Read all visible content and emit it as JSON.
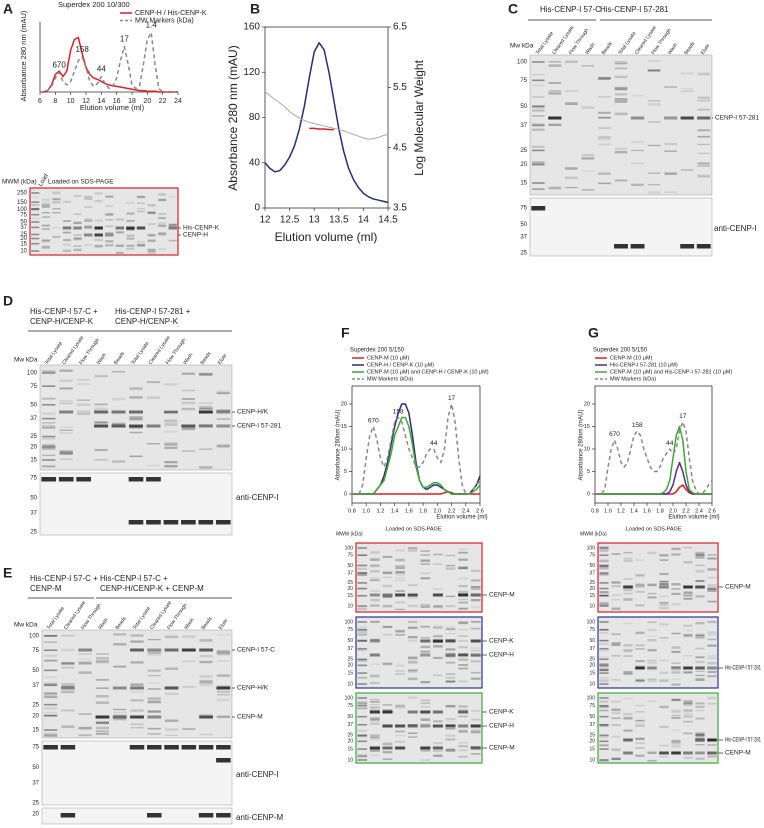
{
  "panel_letters": [
    "A",
    "B",
    "C",
    "D",
    "E",
    "F",
    "G"
  ],
  "chart_data": [
    {
      "type": "line",
      "title": "Superdex 200 10/300",
      "x_label": "Elution volume (ml)",
      "y_label": "Absorbance 280 nm (mAU)",
      "x": [
        6,
        6.5,
        7,
        7.5,
        8,
        8.5,
        9,
        9.5,
        10,
        10.5,
        11,
        11.5,
        12,
        12.5,
        13,
        13.5,
        14,
        14.5,
        15,
        15.5,
        16,
        16.5,
        17,
        17.5,
        18,
        18.5,
        19,
        19.5,
        20,
        20.5,
        21,
        21.5,
        22,
        22.5,
        23,
        23.5,
        24
      ],
      "xlim": [
        6,
        24
      ],
      "xticks": [
        6,
        8,
        10,
        12,
        14,
        16,
        18,
        20,
        22,
        24
      ],
      "ylim": [
        0,
        100
      ],
      "series": [
        {
          "name": "CENP-H / His-CENP-K",
          "color": "#d6202a",
          "style": "solid",
          "values": [
            0,
            0,
            2,
            10,
            25,
            30,
            22,
            30,
            60,
            75,
            78,
            55,
            35,
            25,
            20,
            18,
            15,
            12,
            10,
            9,
            8,
            7,
            6,
            5,
            4,
            3,
            2,
            2,
            1,
            1,
            1,
            0,
            0,
            0,
            0,
            0,
            0
          ]
        },
        {
          "name": "MW Markers (kDa)",
          "color": "#888888",
          "style": "dashed",
          "values": [
            0,
            0,
            2,
            8,
            20,
            28,
            15,
            10,
            15,
            30,
            45,
            50,
            35,
            15,
            8,
            12,
            22,
            12,
            5,
            8,
            20,
            45,
            65,
            40,
            10,
            5,
            10,
            40,
            75,
            85,
            40,
            5,
            0,
            0,
            0,
            0,
            0
          ]
        }
      ],
      "annotations": [
        {
          "label": "670",
          "x": 8.5
        },
        {
          "label": "158",
          "x": 11.5
        },
        {
          "label": "44",
          "x": 14
        },
        {
          "label": "17",
          "x": 17
        },
        {
          "label": "1.4",
          "x": 20.5
        }
      ]
    },
    {
      "type": "line",
      "x_label": "Elution volume (ml)",
      "y_label": "Absorbance 280 nm (mAU)",
      "y2_label": "Log Molecular Weight",
      "x": [
        12,
        12.1,
        12.2,
        12.3,
        12.4,
        12.5,
        12.6,
        12.7,
        12.8,
        12.9,
        13,
        13.1,
        13.2,
        13.3,
        13.4,
        13.5,
        13.6,
        13.7,
        13.8,
        13.9,
        14,
        14.1,
        14.2,
        14.3,
        14.4,
        14.5
      ],
      "xlim": [
        12,
        14.5
      ],
      "xticks": [
        12,
        12.5,
        13,
        13.5,
        14,
        14.5
      ],
      "ylim": [
        0,
        160
      ],
      "yticks": [
        0,
        40,
        80,
        120,
        160
      ],
      "y2lim": [
        3.5,
        6.5
      ],
      "y2ticks": [
        3.5,
        4.5,
        5.5,
        6.5
      ],
      "series": [
        {
          "color": "#2b2a7a",
          "style": "solid",
          "values": [
            40,
            35,
            32,
            33,
            38,
            45,
            55,
            70,
            90,
            115,
            138,
            146,
            140,
            120,
            95,
            70,
            50,
            35,
            25,
            18,
            13,
            10,
            8,
            7,
            6,
            5
          ]
        },
        {
          "color": "#aaaaaa",
          "style": "solid",
          "axis": "y2",
          "values": [
            5.43,
            5.36,
            5.3,
            5.24,
            5.18,
            5.1,
            5.04,
            4.99,
            4.95,
            4.92,
            4.9,
            4.88,
            4.86,
            4.84,
            4.82,
            4.8,
            4.78,
            4.75,
            4.72,
            4.69,
            4.66,
            4.64,
            4.65,
            4.67,
            4.7,
            4.72
          ]
        },
        {
          "color": "#d6202a",
          "style": "solid",
          "axis": "y2",
          "values": [
            null,
            null,
            null,
            null,
            null,
            null,
            null,
            null,
            null,
            4.82,
            4.82,
            4.81,
            4.81,
            4.8,
            4.8,
            null,
            null,
            null,
            null,
            null,
            null,
            null,
            null,
            null,
            null,
            null
          ]
        }
      ]
    },
    {
      "type": "line",
      "title": "Superdex 200 5/150",
      "x_label": "Elution volume (ml)",
      "y_label": "Absorbance 280nm (mAU)",
      "x": [
        0.8,
        0.85,
        0.9,
        0.95,
        1,
        1.05,
        1.1,
        1.15,
        1.2,
        1.25,
        1.3,
        1.35,
        1.4,
        1.45,
        1.5,
        1.55,
        1.6,
        1.65,
        1.7,
        1.75,
        1.8,
        1.85,
        1.9,
        1.95,
        2,
        2.05,
        2.1,
        2.15,
        2.2,
        2.25,
        2.3,
        2.35,
        2.4,
        2.45,
        2.5,
        2.55,
        2.6
      ],
      "xlim": [
        0.8,
        2.6
      ],
      "xticks": [
        0.8,
        {
          "value": 1,
          "label": "1.0"
        },
        1.2,
        1.4,
        1.6,
        1.8,
        {
          "value": 2,
          "label": "2.0"
        },
        2.2,
        2.4,
        2.6
      ],
      "ylim": [
        -2,
        24
      ],
      "yticks": [
        0,
        5,
        10,
        15,
        20
      ],
      "series": [
        {
          "name": "CENP-M (10 μM)",
          "color": "#d6202a",
          "style": "solid",
          "values": [
            0,
            0,
            0,
            0,
            0,
            0,
            0,
            0,
            0,
            0,
            0,
            0,
            0,
            0,
            0,
            0,
            0,
            0,
            0,
            0,
            0,
            0,
            0,
            0,
            0,
            0,
            0.3,
            0.5,
            0.3,
            0,
            0,
            0,
            0,
            0,
            0,
            0,
            0
          ]
        },
        {
          "name": "CENP-H / CENP-K (10 μM)",
          "color": "#2b2a7a",
          "style": "solid",
          "values": [
            0,
            0,
            0,
            0,
            0,
            0,
            0,
            1,
            2,
            4,
            7,
            11,
            15,
            18,
            20,
            20,
            18,
            13,
            7,
            3,
            1.5,
            1,
            1.5,
            2,
            2,
            1.5,
            1,
            0.5,
            0,
            0,
            0,
            0,
            0,
            0,
            1,
            2,
            4
          ]
        },
        {
          "name": "CENP-M (10 μM) and CENP-H / CENP-K (10 μM)",
          "color": "#3aaa35",
          "style": "solid",
          "values": [
            0,
            0,
            0,
            0,
            0,
            0,
            0,
            1,
            2,
            3,
            6,
            9,
            13,
            15,
            17,
            17,
            15,
            11,
            6,
            3,
            1.5,
            1.5,
            2,
            2.5,
            2.5,
            2,
            1,
            0.5,
            0,
            0,
            0,
            0,
            0,
            0,
            0.5,
            1,
            2
          ]
        },
        {
          "name": "MW Markers (kDa)",
          "color": "#888888",
          "style": "dashed",
          "values": [
            0,
            0,
            0,
            2,
            8,
            13,
            15,
            12,
            8,
            6,
            8,
            12,
            16,
            17,
            16,
            13,
            10,
            8,
            6,
            6,
            7,
            9,
            10,
            10,
            8,
            7,
            10,
            17,
            20,
            16,
            8,
            2,
            0,
            0,
            1,
            2,
            3
          ]
        }
      ],
      "annotations": [
        {
          "label": "670",
          "x": 1.1
        },
        {
          "label": "158",
          "x": 1.45
        },
        {
          "label": "44",
          "x": 1.95
        },
        {
          "label": "17",
          "x": 2.2
        }
      ]
    },
    {
      "type": "line",
      "title": "Superdex 200 5/150",
      "x_label": "Elution volume (ml)",
      "y_label": "Absorbance 280nm (mAU)",
      "x": [
        0.8,
        0.85,
        0.9,
        0.95,
        1,
        1.05,
        1.1,
        1.15,
        1.2,
        1.25,
        1.3,
        1.35,
        1.4,
        1.45,
        1.5,
        1.55,
        1.6,
        1.65,
        1.7,
        1.75,
        1.8,
        1.85,
        1.9,
        1.95,
        2,
        2.05,
        2.1,
        2.15,
        2.2,
        2.25,
        2.3,
        2.35,
        2.4,
        2.45,
        2.5,
        2.55,
        2.6
      ],
      "xlim": [
        0.8,
        2.6
      ],
      "xticks": [
        0.8,
        {
          "value": 1,
          "label": "1.0"
        },
        1.2,
        1.4,
        1.6,
        1.8,
        {
          "value": 2,
          "label": "2.0"
        },
        2.2,
        2.4,
        2.6
      ],
      "ylim": [
        -2,
        24
      ],
      "yticks": [
        0,
        5,
        10,
        15,
        20
      ],
      "series": [
        {
          "name": "CENP-M (10 μM)",
          "color": "#d6202a",
          "style": "solid",
          "values": [
            0,
            0,
            0,
            0,
            0,
            0,
            0,
            0,
            0,
            0,
            0,
            0,
            0,
            0,
            0,
            0,
            0,
            0,
            0,
            0,
            0,
            0,
            0,
            0,
            0,
            0.5,
            1.5,
            2,
            1,
            0.3,
            0,
            0,
            0,
            0,
            0,
            0,
            0
          ]
        },
        {
          "name": "His-CENP-I 57-281 (10 μM)",
          "color": "#5b2a86",
          "style": "solid",
          "values": [
            0,
            0,
            0,
            0,
            0,
            0,
            0,
            0,
            0,
            0,
            0,
            0,
            0,
            0,
            0,
            0,
            0,
            0,
            0,
            0,
            0,
            0,
            0,
            0.5,
            2,
            5,
            7,
            5,
            2,
            0.5,
            0,
            0,
            0,
            0,
            0,
            0,
            0
          ]
        },
        {
          "name": "CENP-M (10 μM) and His-CENP-I 57-281 (10 μM)",
          "color": "#3aaa35",
          "style": "solid",
          "values": [
            0,
            0,
            0,
            0,
            0,
            0,
            0,
            0,
            0,
            0,
            0,
            0,
            0,
            0,
            0,
            0,
            0,
            0,
            0,
            0,
            0,
            0.3,
            1,
            3,
            8,
            13,
            15,
            12,
            5,
            1,
            0.3,
            0,
            0,
            0,
            0,
            0,
            0
          ]
        },
        {
          "name": "MW Markers (kDa)",
          "color": "#888888",
          "style": "dashed",
          "values": [
            0,
            0,
            0,
            1,
            6,
            10,
            12,
            10,
            7,
            6,
            7,
            10,
            13,
            14,
            13,
            10,
            8,
            6,
            5,
            5,
            6,
            8,
            9,
            10,
            9,
            10,
            14,
            16,
            14,
            8,
            3,
            1,
            0,
            0,
            1,
            2,
            3
          ]
        }
      ],
      "annotations": [
        {
          "label": "670",
          "x": 1.1
        },
        {
          "label": "158",
          "x": 1.45
        },
        {
          "label": "44",
          "x": 1.95
        },
        {
          "label": "17",
          "x": 2.15
        }
      ]
    }
  ],
  "lane_headers": [
    {
      "groups": [
        [
          "His-CENP-I 57-C"
        ],
        [
          "His-CENP-I 57-281"
        ]
      ],
      "lanes": [
        "Total Lysate",
        "Cleared Lysate",
        "Flow Through",
        "Wash",
        "Beads",
        "Total Lysate",
        "Cleared Lysate",
        "Flow Through",
        "Wash",
        "Beads",
        "Elute"
      ]
    },
    {
      "groups": [
        [
          "His-CENP-I 57-C +",
          "CENP-H/CENP-K"
        ],
        [
          "His-CENP-I 57-281 +",
          "CENP-H/CENP-K"
        ]
      ],
      "lanes": [
        "Total Lysate",
        "Cleared Lysate",
        "Flow Through",
        "Wash",
        "Beads",
        "Total Lysate",
        "Cleared Lysate",
        "Flow Through",
        "Wash",
        "Beads",
        "Elute"
      ]
    },
    {
      "groups": [
        [
          "His-CENP-I 57-C +",
          "CENP-M"
        ],
        [
          "His-CENP-I 57-C +",
          "CENP-H/CENP-K + CENP-M"
        ]
      ],
      "lanes": [
        "Total Lysate",
        "Cleared Lysate",
        "Flow Through",
        "Wash",
        "Beads",
        "Total Lysate",
        "Cleared Lysate",
        "Flow Through",
        "Wash",
        "Beads",
        "Elute"
      ]
    }
  ],
  "gels": [
    {
      "marker_title": "MWM (kDa)",
      "lane": "Load",
      "caption": "Loaded on SDS-PAGE",
      "markers": [
        250,
        150,
        100,
        75,
        50,
        37,
        25,
        20,
        15,
        10
      ],
      "labels": [
        "His-CENP-K",
        "CENP-H"
      ]
    },
    {
      "marker_title": "Mw kDa",
      "markers": [
        100,
        75,
        50,
        37,
        25,
        20,
        15
      ],
      "labels": [
        "CENP-I 57-281"
      ]
    },
    {
      "markers": [
        75,
        50,
        37,
        25
      ],
      "antibody": "anti-CENP-I"
    },
    {
      "marker_title": "Mw kDa",
      "markers": [
        100,
        75,
        50,
        37,
        25,
        20,
        15
      ],
      "labels": [
        "CENP-H/K",
        "CENP-I 57-281"
      ]
    },
    {
      "markers": [
        75,
        50,
        37,
        25
      ],
      "antibody": "anti-CENP-I"
    },
    {
      "marker_title": "Mw kDa",
      "markers": [
        100,
        75,
        50,
        37,
        25,
        20,
        15
      ],
      "labels": [
        "CENP-I 57-C",
        "CENP-H/K",
        "CENP-M"
      ]
    },
    {
      "markers": [
        75,
        50,
        37,
        25
      ],
      "antibody": "anti-CENP-I"
    },
    {
      "markers": [
        20
      ],
      "antibody": "anti-CENP-M"
    },
    {
      "marker_title": "MWM (kDa)",
      "caption": "Loaded on SDS-PAGE",
      "markers": [
        100,
        75,
        50,
        37,
        25,
        20,
        15,
        10
      ],
      "labels": [
        "CENP-M"
      ]
    },
    {
      "markers": [
        100,
        75,
        50,
        37,
        25,
        20,
        15,
        10
      ],
      "labels": [
        "CENP-K",
        "CENP-H"
      ]
    },
    {
      "markers": [
        100,
        75,
        50,
        37,
        25,
        20,
        15,
        10
      ],
      "labels": [
        "CENP-K",
        "CENP-H",
        "CENP-M"
      ]
    },
    {
      "marker_title": "MWM (kDa)",
      "caption": "Loaded on SDS-PAGE",
      "markers": [
        100,
        75,
        50,
        37,
        25,
        20,
        15,
        10
      ],
      "labels": [
        "CENP-M"
      ]
    },
    {
      "markers": [
        100,
        75,
        50,
        37,
        25,
        20,
        15,
        10
      ],
      "labels": [
        "His-CENP-I 57-281"
      ]
    },
    {
      "markers": [
        100,
        75,
        50,
        37,
        25,
        20,
        15,
        10
      ],
      "labels": [
        "His-CENP-I 57-281",
        "CENP-M"
      ]
    }
  ]
}
